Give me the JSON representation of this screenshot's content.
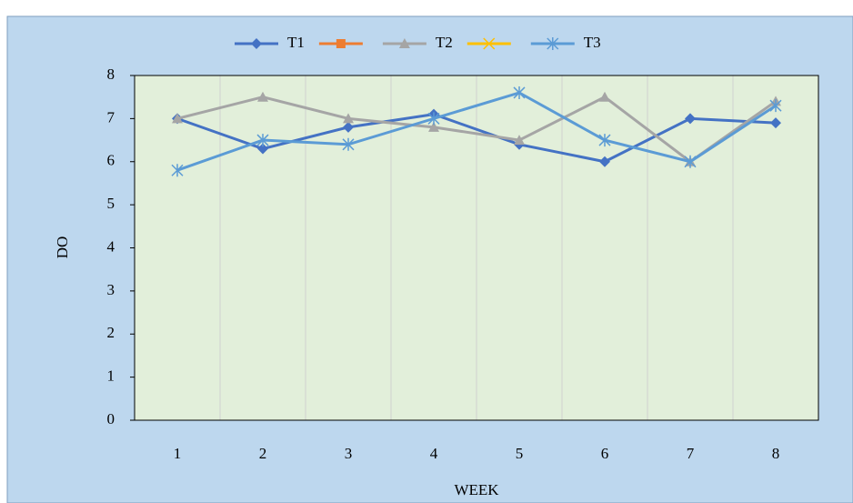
{
  "chart_data": {
    "type": "line",
    "y_label": "DO",
    "x_label": "WEEK",
    "categories": [
      1,
      2,
      3,
      4,
      5,
      6,
      7,
      8
    ],
    "series": [
      {
        "name": "T1",
        "color": "#4472c4",
        "marker": "diamond",
        "values": [
          7.0,
          6.3,
          6.8,
          7.1,
          6.4,
          6.0,
          7.0,
          6.9
        ]
      },
      {
        "color": "#ed7d31",
        "marker": "square",
        "values": [
          null,
          null,
          null,
          null,
          null,
          null,
          null,
          null
        ]
      },
      {
        "name": "T2",
        "color": "#a5a5a5",
        "marker": "triangle",
        "values": [
          7.0,
          7.5,
          7.0,
          6.8,
          6.5,
          7.5,
          6.0,
          7.4
        ]
      },
      {
        "color": "#ffc000",
        "marker": "x",
        "values": [
          null,
          null,
          null,
          null,
          null,
          null,
          null,
          null
        ]
      },
      {
        "name": "T3",
        "color": "#5b9bd5",
        "marker": "star",
        "values": [
          5.8,
          6.5,
          6.4,
          7.0,
          7.6,
          6.5,
          6.0,
          7.3
        ]
      }
    ],
    "ylim": [
      0,
      8
    ],
    "yticks": [
      0,
      1,
      2,
      3,
      4,
      5,
      6,
      7,
      8
    ],
    "legend": "top",
    "plot_background": "#e2efda",
    "background": "#bdd7ee"
  }
}
